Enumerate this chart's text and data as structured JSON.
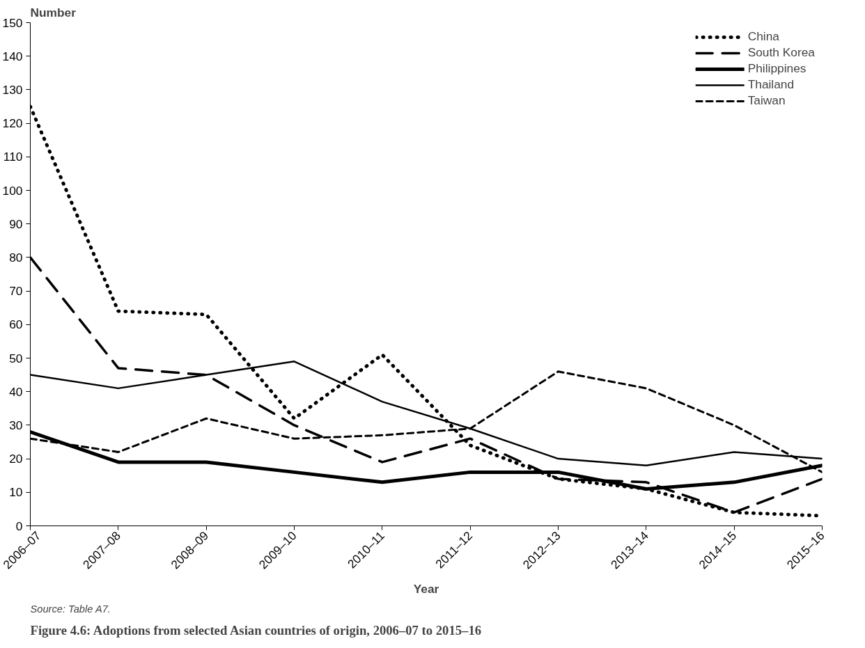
{
  "chart_data": {
    "type": "line",
    "title": "Figure 4.6: Adoptions from selected Asian countries of origin, 2006–07 to 2015–16",
    "xlabel": "Year",
    "ylabel": "Number",
    "annotations": [
      "Source: Table A7."
    ],
    "categories": [
      "2006–07",
      "2007–08",
      "2008–09",
      "2009–10",
      "2010–11",
      "2011–12",
      "2012–13",
      "2013–14",
      "2014–15",
      "2015–16"
    ],
    "ylim": [
      0,
      150
    ],
    "yticks": [
      0,
      10,
      20,
      30,
      40,
      50,
      60,
      70,
      80,
      90,
      100,
      110,
      120,
      130,
      140,
      150
    ],
    "grid": false,
    "legend": "top right",
    "series": [
      {
        "name": "China",
        "color": "#000000",
        "line_style": "dotted",
        "values": [
          125,
          64,
          63,
          32,
          51,
          24,
          14,
          11,
          4,
          3
        ]
      },
      {
        "name": "South Korea",
        "color": "#000000",
        "line_style": "dashed",
        "values": [
          80,
          47,
          45,
          30,
          19,
          26,
          14,
          13,
          4,
          14
        ]
      },
      {
        "name": "Philippines",
        "color": "#000000",
        "line_style": "solid",
        "values": [
          28,
          19,
          19,
          16,
          13,
          16,
          16,
          11,
          13,
          18
        ]
      },
      {
        "name": "Thailand",
        "color": "#000000",
        "line_style": "solid",
        "values": [
          45,
          41,
          45,
          49,
          37,
          29,
          20,
          18,
          22,
          20
        ]
      },
      {
        "name": "Taiwan",
        "color": "#000000",
        "line_style": "dashed",
        "values": [
          26,
          22,
          32,
          26,
          27,
          29,
          46,
          41,
          30,
          16
        ]
      }
    ]
  }
}
